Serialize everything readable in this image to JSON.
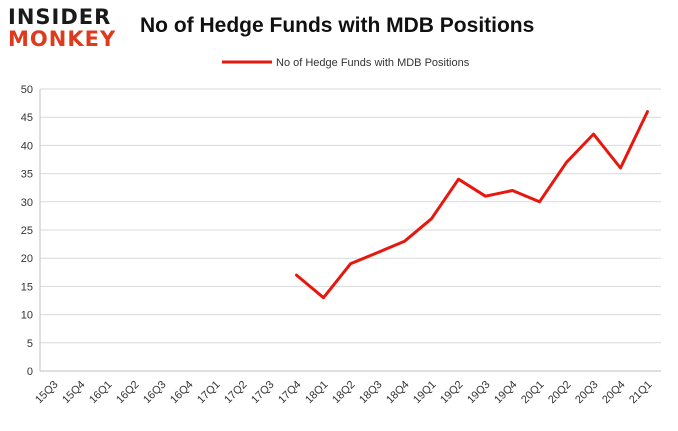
{
  "logo": {
    "line1": "INSIDER",
    "line2": "MONKEY"
  },
  "chart_data": {
    "type": "line",
    "title": "No of Hedge Funds with MDB Positions",
    "xlabel": "",
    "ylabel": "",
    "categories": [
      "15Q3",
      "15Q4",
      "16Q1",
      "16Q2",
      "16Q3",
      "16Q4",
      "17Q1",
      "17Q2",
      "17Q3",
      "17Q4",
      "18Q1",
      "18Q2",
      "18Q3",
      "18Q4",
      "19Q1",
      "19Q2",
      "19Q3",
      "19Q4",
      "20Q1",
      "20Q2",
      "20Q3",
      "20Q4",
      "21Q1"
    ],
    "series": [
      {
        "name": "No of Hedge Funds with MDB Positions",
        "color": "#e8170e",
        "values": [
          null,
          null,
          null,
          null,
          null,
          null,
          null,
          null,
          null,
          17,
          13,
          19,
          21,
          23,
          27,
          34,
          31,
          32,
          30,
          37,
          42,
          36,
          46
        ]
      }
    ],
    "ylim": [
      0,
      50
    ],
    "yticks": [
      0,
      5,
      10,
      15,
      20,
      25,
      30,
      35,
      40,
      45,
      50
    ],
    "grid": true,
    "legend": "top-center"
  }
}
